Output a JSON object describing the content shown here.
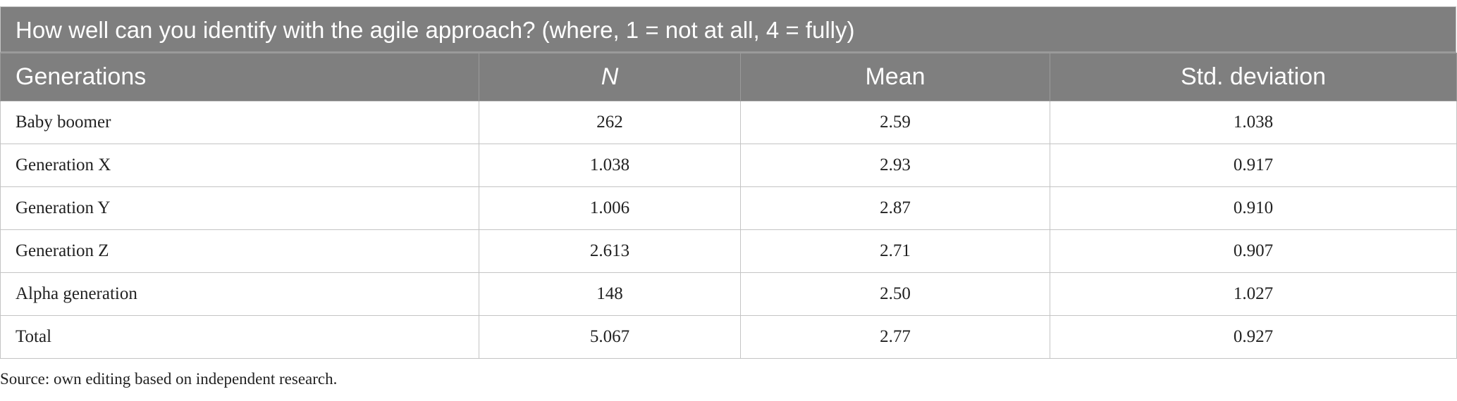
{
  "title": "How well can you identify with the agile approach? (where, 1 = not at all, 4 = fully)",
  "table": {
    "header": [
      "Generations",
      "N",
      "Mean",
      "Std. deviation"
    ],
    "rows": [
      [
        "Baby boomer",
        "262",
        "2.59",
        "1.038"
      ],
      [
        "Generation X",
        "1.038",
        "2.93",
        "0.917"
      ],
      [
        "Generation Y",
        "1.006",
        "2.87",
        "0.910"
      ],
      [
        "Generation Z",
        "2.613",
        "2.71",
        "0.907"
      ],
      [
        "Alpha generation",
        "148",
        "2.50",
        "1.027"
      ],
      [
        "Total",
        "5.067",
        "2.77",
        "0.927"
      ]
    ]
  },
  "source": "Source: own editing based on independent research."
}
